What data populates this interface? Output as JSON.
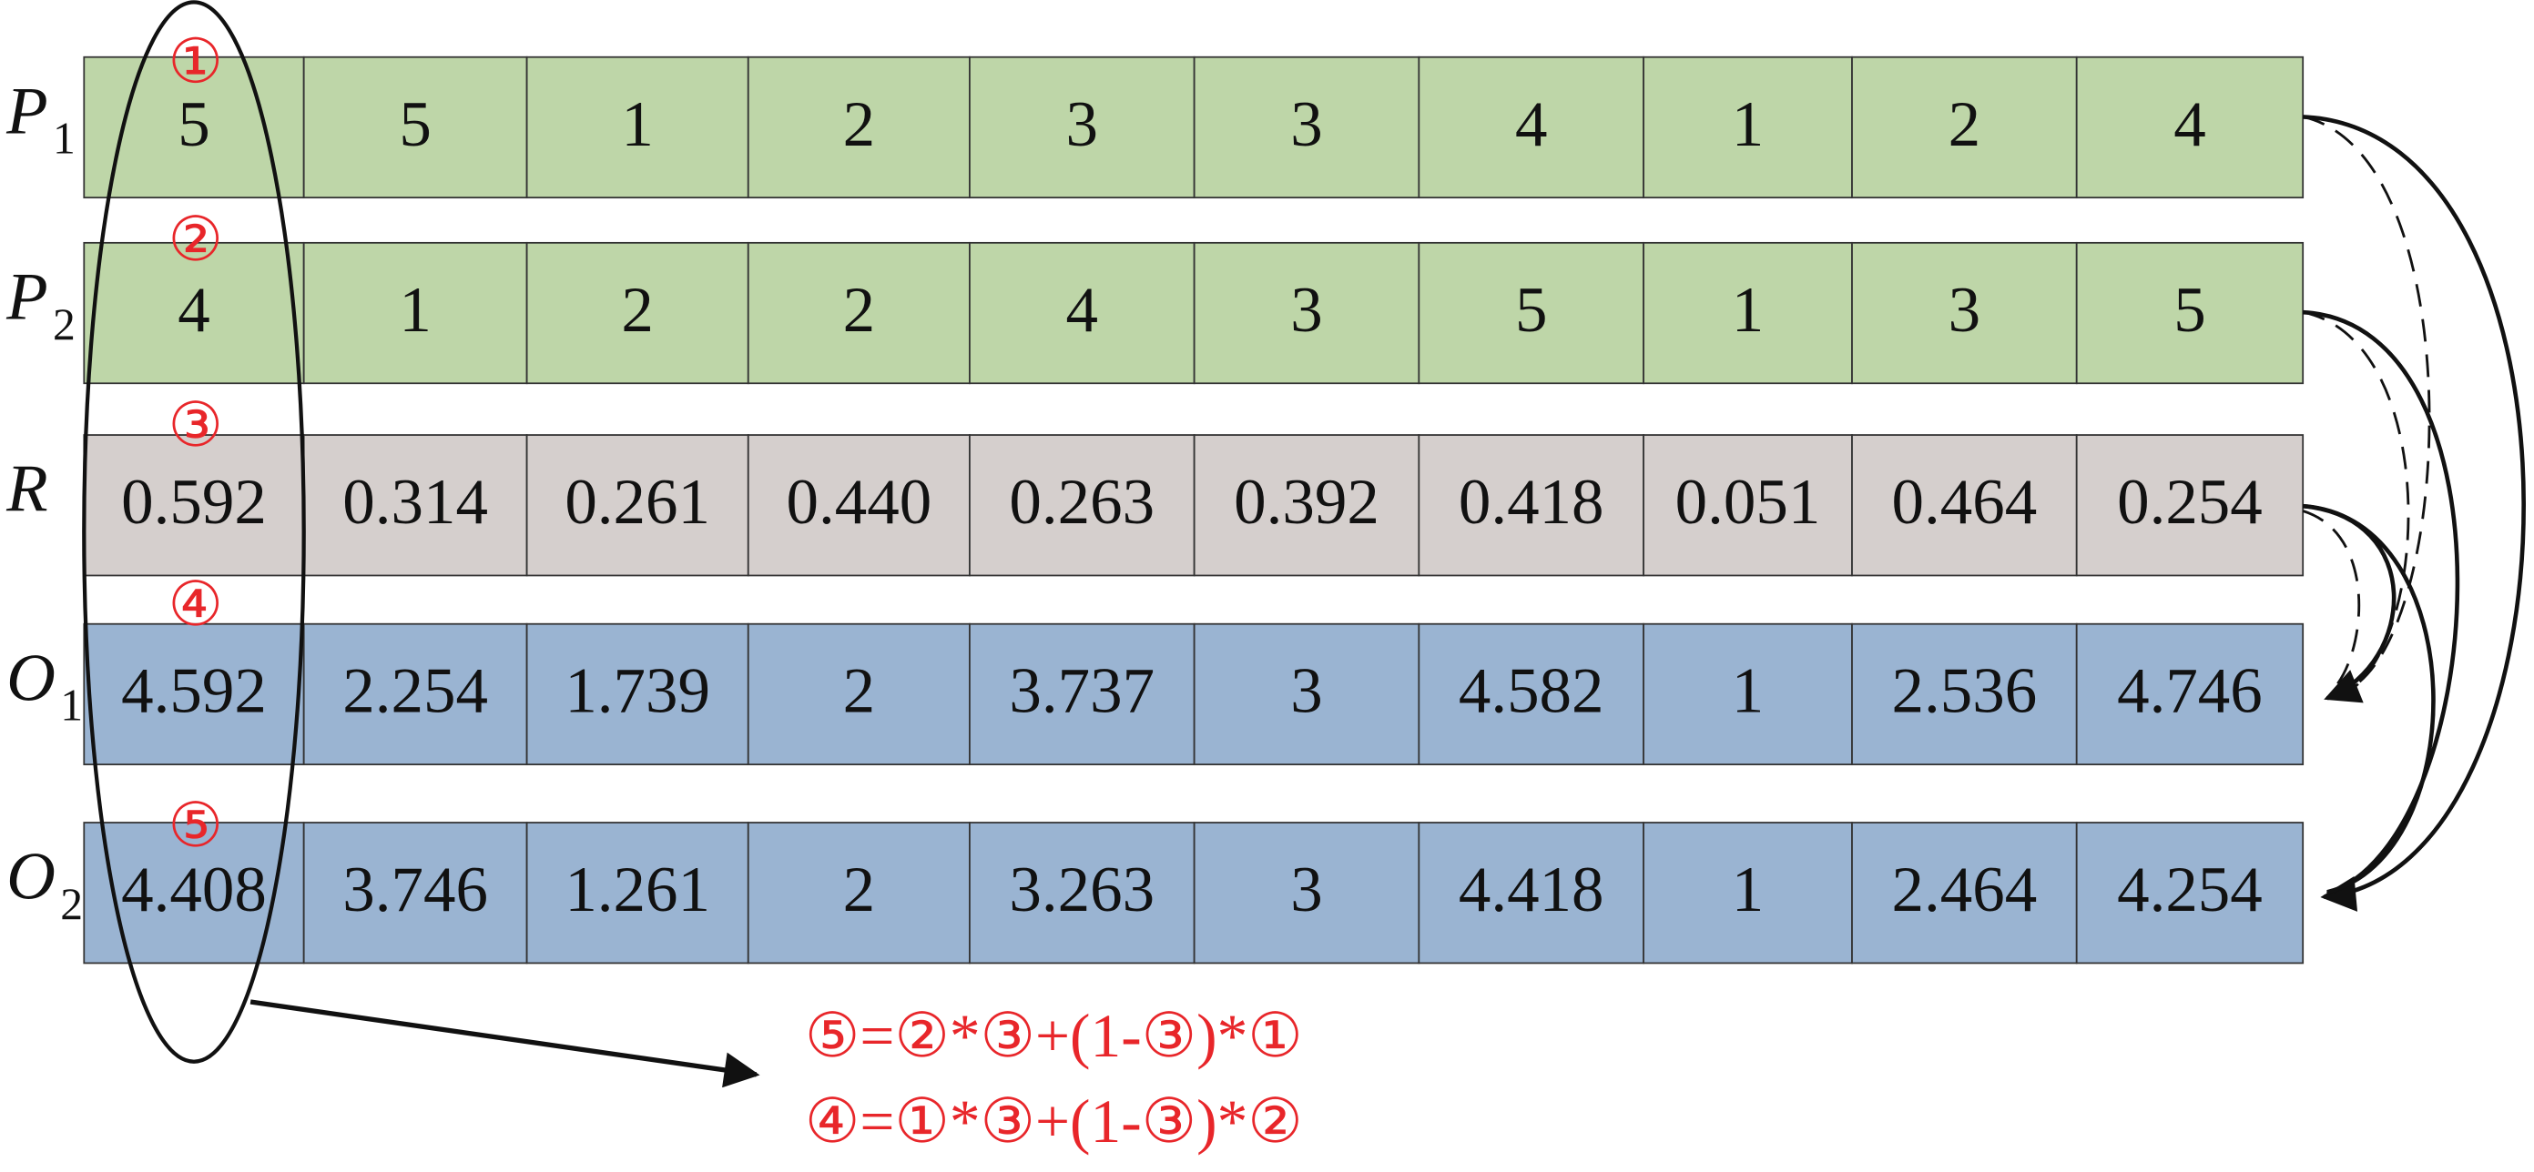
{
  "rows": [
    {
      "label": "P",
      "sub": "1",
      "cells": [
        "5",
        "5",
        "1",
        "2",
        "3",
        "3",
        "4",
        "1",
        "2",
        "4"
      ]
    },
    {
      "label": "P",
      "sub": "2",
      "cells": [
        "4",
        "1",
        "2",
        "2",
        "4",
        "3",
        "5",
        "1",
        "3",
        "5"
      ]
    },
    {
      "label": "R",
      "sub": null,
      "cells": [
        "0.592",
        "0.314",
        "0.261",
        "0.440",
        "0.263",
        "0.392",
        "0.418",
        "0.051",
        "0.464",
        "0.254"
      ]
    },
    {
      "label": "O",
      "sub": "1",
      "cells": [
        "4.592",
        "2.254",
        "1.739",
        "2",
        "3.737",
        "3",
        "4.582",
        "1",
        "2.536",
        "4.746"
      ]
    },
    {
      "label": "O",
      "sub": "2",
      "cells": [
        "4.408",
        "3.746",
        "1.261",
        "2",
        "3.263",
        "3",
        "4.418",
        "1",
        "2.464",
        "4.254"
      ]
    }
  ],
  "markers": [
    "①",
    "②",
    "③",
    "④",
    "⑤"
  ],
  "formulas": [
    "⑤=②*③+(1-③)*①",
    "④=①*③+(1-③)*②"
  ]
}
